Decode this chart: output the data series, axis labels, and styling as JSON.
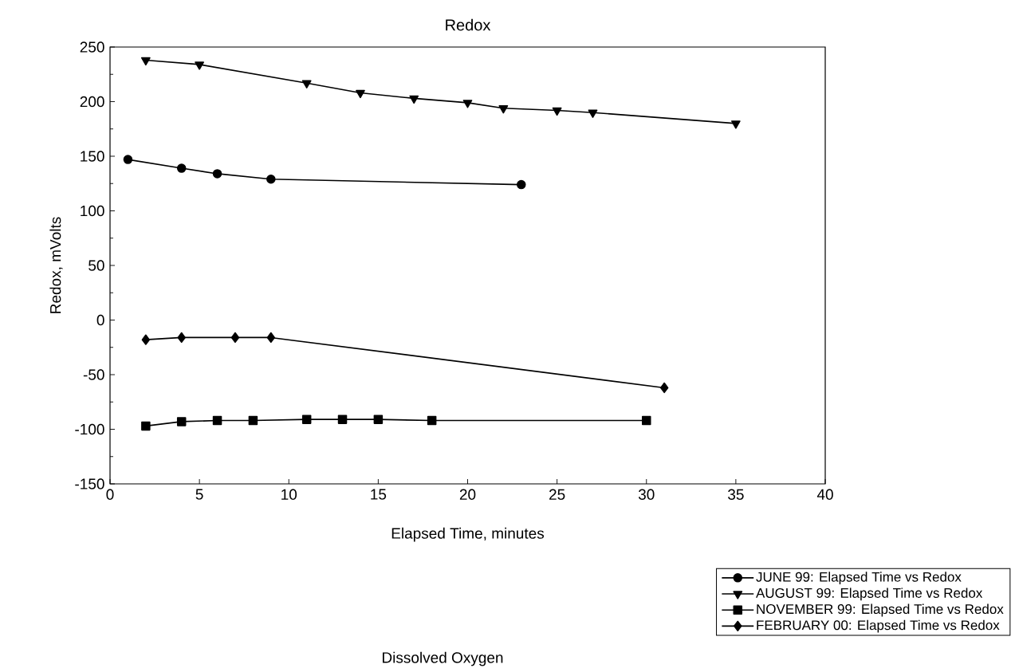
{
  "chart_data": {
    "type": "line",
    "title": "Redox",
    "xlabel": "Elapsed Time, minutes",
    "ylabel": "Redox, mVolts",
    "xlim": [
      0,
      40
    ],
    "xticks": [
      0,
      5,
      10,
      15,
      20,
      25,
      30,
      35,
      40
    ],
    "ylim": [
      -150,
      250
    ],
    "yticks": [
      -150,
      -100,
      -50,
      0,
      50,
      100,
      150,
      200,
      250
    ],
    "grid": false,
    "legend": "bottom right",
    "line_style": "solid",
    "annotations": [
      "Dissolved Oxygen"
    ],
    "series": [
      {
        "name": "JUNE 99:  Elapsed Time vs Redox",
        "color": "#000000",
        "marker": "circle",
        "x": [
          1,
          4,
          6,
          9,
          23
        ],
        "values": [
          147,
          139,
          134,
          129,
          124
        ]
      },
      {
        "name": "AUGUST 99:  Elapsed Time vs Redox",
        "color": "#000000",
        "marker": "triangle",
        "x": [
          2,
          5,
          11,
          14,
          17,
          20,
          22,
          25,
          27,
          35
        ],
        "values": [
          238,
          234,
          217,
          208,
          203,
          199,
          194,
          192,
          190,
          180
        ]
      },
      {
        "name": "NOVEMBER 99:  Elapsed Time vs Redox",
        "color": "#000000",
        "marker": "square",
        "x": [
          2,
          4,
          6,
          8,
          11,
          13,
          15,
          18,
          30
        ],
        "values": [
          -97,
          -93,
          -92,
          -92,
          -91,
          -91,
          -91,
          -92,
          -92
        ]
      },
      {
        "name": "FEBRUARY 00:  Elapsed Time vs Redox",
        "color": "#000000",
        "marker": "diamond",
        "x": [
          2,
          4,
          7,
          9,
          31
        ],
        "values": [
          -18,
          -16,
          -16,
          -16,
          -62
        ]
      }
    ]
  }
}
